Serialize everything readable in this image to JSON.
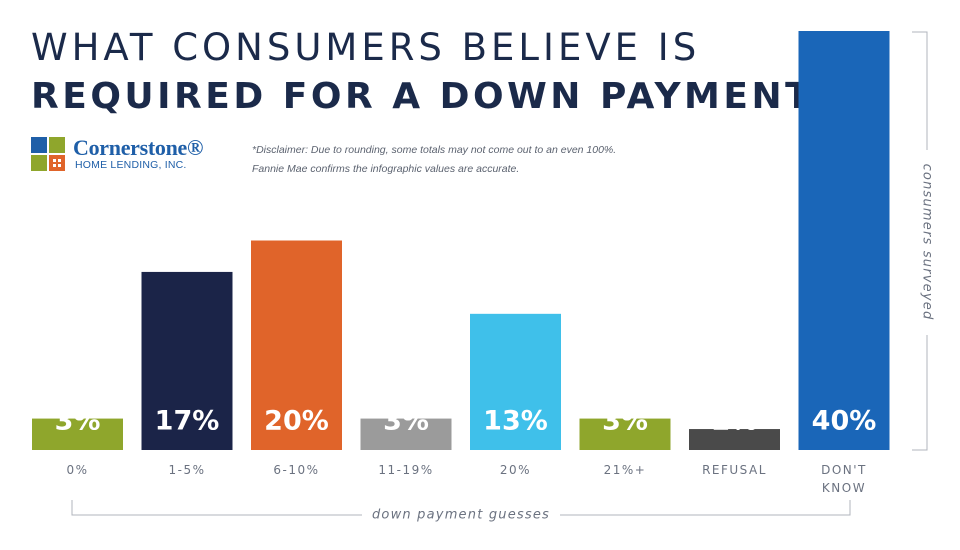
{
  "header": {
    "title_line1": "WHAT CONSUMERS BELIEVE IS",
    "title_line2": "REQUIRED FOR A DOWN PAYMENT"
  },
  "logo": {
    "name": "Cornerstone®",
    "subtitle": "HOME LENDING, INC."
  },
  "disclaimer": {
    "line1": "*Disclaimer: Due to rounding, some totals may not come out to an even 100%.",
    "line2": "Fannie Mae confirms the infographic values are accurate."
  },
  "chart_data": {
    "type": "bar",
    "categories": [
      "0%",
      "1-5%",
      "6-10%",
      "11-19%",
      "20%",
      "21%+",
      "REFUSAL",
      "DON'T KNOW"
    ],
    "values": [
      3,
      17,
      20,
      3,
      13,
      3,
      2,
      40
    ],
    "data_labels": [
      "3%",
      "17%",
      "20%",
      "3%",
      "13%",
      "3%",
      "2%",
      "40%"
    ],
    "colors": [
      "#8fa62c",
      "#1b2448",
      "#e0642a",
      "#9b9b9b",
      "#3fc0ea",
      "#8fa62c",
      "#4a4a4a",
      "#1a66b8"
    ],
    "label_colors": [
      "#ffffff",
      "#ffffff",
      "#ffffff",
      "#ffffff",
      "#ffffff",
      "#ffffff",
      "#ffffff",
      "#ffffff"
    ],
    "xlabel": "down payment guesses",
    "ylabel": "consumers surveyed",
    "ylim": [
      0,
      40
    ],
    "grid": false
  }
}
